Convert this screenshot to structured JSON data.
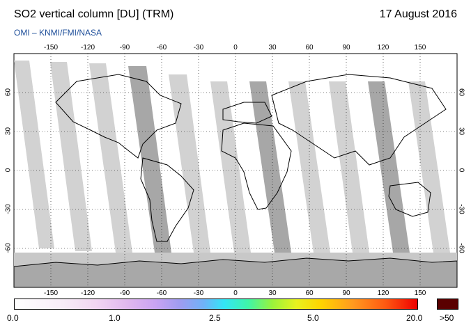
{
  "header": {
    "title": "SO2 vertical column [DU] (TRM)",
    "date": "17 August 2016",
    "credit": "OMI  –  KNMI/FMI/NASA"
  },
  "map": {
    "projection": "equirectangular",
    "lon_range": [
      -180,
      180
    ],
    "lat_range": [
      -90,
      90
    ],
    "lon_ticks": [
      "-150",
      "-120",
      "-90",
      "-60",
      "-30",
      "0",
      "30",
      "60",
      "90",
      "120",
      "150"
    ],
    "lat_ticks": [
      "60",
      "30",
      "0",
      "-30",
      "-60"
    ],
    "gridlines": "dotted",
    "colors": {
      "no_data_dark": "#8a8a8a",
      "no_data_light": "#d2d2d2",
      "antarctica": "#a8a8a8",
      "south_band": "#c8c8c8",
      "coastline": "#000000"
    }
  },
  "colorbar": {
    "labels": [
      "0.0",
      "1.0",
      "2.5",
      "5.0",
      "20.0"
    ],
    "overflow_label": ">50",
    "overflow_color": "#5a0000",
    "gradient_colors": [
      "#ffffff",
      "#f2d6f2",
      "#c9a3f2",
      "#6fb2f8",
      "#33e6f7",
      "#9af23b",
      "#ffd400",
      "#ff9a1f",
      "#ee0000"
    ]
  }
}
